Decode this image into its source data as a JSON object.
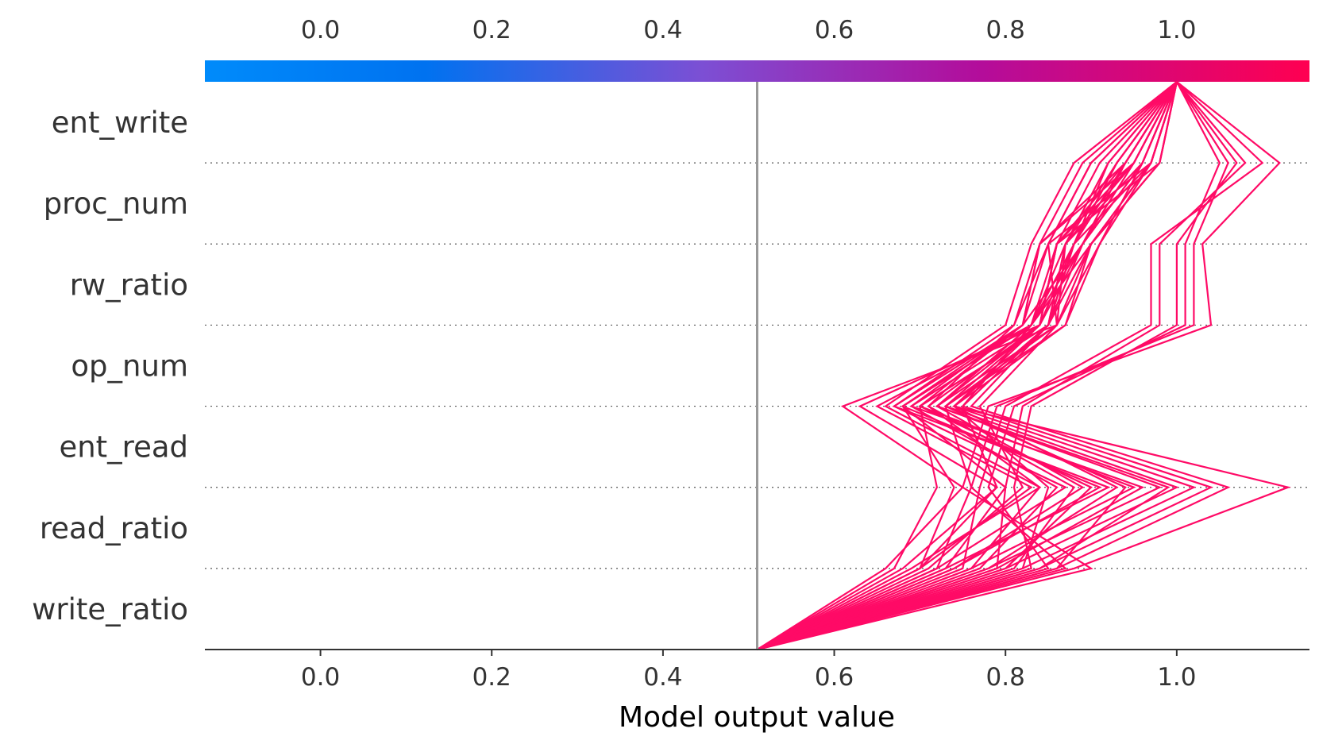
{
  "chart_data": {
    "type": "line",
    "plot_kind": "decision plot",
    "xlabel": "Model output value",
    "xlim": [
      -0.135,
      1.155
    ],
    "x_ticks": [
      "0.0",
      "0.2",
      "0.4",
      "0.6",
      "0.8",
      "1.0"
    ],
    "x_tick_values": [
      0.0,
      0.2,
      0.4,
      0.6,
      0.8,
      1.0
    ],
    "top_axis_ticks": [
      "0.0",
      "0.2",
      "0.4",
      "0.6",
      "0.8",
      "1.0"
    ],
    "features": [
      "ent_write",
      "proc_num",
      "rw_ratio",
      "op_num",
      "ent_read",
      "read_ratio",
      "write_ratio"
    ],
    "base_value": 0.51,
    "grid": "dotted horizontal lines between features",
    "colorbar": {
      "position": "top",
      "colors": [
        "#008bfb",
        "#0072f0",
        "#7c4fd4",
        "#b30d9b",
        "#ff0051"
      ]
    },
    "line_color": "#ff0a66",
    "base_line_color": "#999999",
    "series_note": "Each series lists cumulative output at levels: bottom, after write_ratio, after read_ratio, after ent_read, after op_num, after rw_ratio, after proc_num, top (after ent_write).",
    "series": [
      {
        "values": [
          0.51,
          0.66,
          0.75,
          0.61,
          0.86,
          0.85,
          0.97,
          1.0
        ]
      },
      {
        "values": [
          0.51,
          0.68,
          0.79,
          0.63,
          0.84,
          0.86,
          0.98,
          1.0
        ]
      },
      {
        "values": [
          0.51,
          0.7,
          0.83,
          0.65,
          0.83,
          0.88,
          0.94,
          1.0
        ]
      },
      {
        "values": [
          0.51,
          0.72,
          0.87,
          0.67,
          0.82,
          0.89,
          0.96,
          1.0
        ]
      },
      {
        "values": [
          0.51,
          0.74,
          0.91,
          0.68,
          0.82,
          0.84,
          0.95,
          1.0
        ]
      },
      {
        "values": [
          0.51,
          0.76,
          0.95,
          0.7,
          0.85,
          0.87,
          0.93,
          1.0
        ]
      },
      {
        "values": [
          0.51,
          0.78,
          0.98,
          0.72,
          0.86,
          0.9,
          0.97,
          1.0
        ]
      },
      {
        "values": [
          0.51,
          0.8,
          1.0,
          0.73,
          0.87,
          0.91,
          0.96,
          1.0
        ]
      },
      {
        "values": [
          0.51,
          0.82,
          1.02,
          0.74,
          0.84,
          0.88,
          0.92,
          1.0
        ]
      },
      {
        "values": [
          0.51,
          0.84,
          1.04,
          0.75,
          0.83,
          0.86,
          0.94,
          1.0
        ]
      },
      {
        "values": [
          0.51,
          0.86,
          1.06,
          0.76,
          0.85,
          0.88,
          0.97,
          1.0
        ]
      },
      {
        "values": [
          0.51,
          0.88,
          1.13,
          0.74,
          0.87,
          0.9,
          0.98,
          1.0
        ]
      },
      {
        "values": [
          0.51,
          0.8,
          0.9,
          0.7,
          0.85,
          0.87,
          0.95,
          1.0
        ]
      },
      {
        "values": [
          0.51,
          0.77,
          0.86,
          0.69,
          0.84,
          0.88,
          0.93,
          1.0
        ]
      },
      {
        "values": [
          0.51,
          0.73,
          0.8,
          0.68,
          0.83,
          0.9,
          0.97,
          1.0
        ]
      },
      {
        "values": [
          0.51,
          0.72,
          0.76,
          0.73,
          0.84,
          0.89,
          0.96,
          1.0
        ]
      },
      {
        "values": [
          0.51,
          0.7,
          0.79,
          0.75,
          0.85,
          0.9,
          0.98,
          1.0
        ]
      },
      {
        "values": [
          0.51,
          0.71,
          0.82,
          0.77,
          0.86,
          0.91,
          0.97,
          1.0
        ]
      },
      {
        "values": [
          0.51,
          0.69,
          0.84,
          0.71,
          0.84,
          0.86,
          0.95,
          1.0
        ]
      },
      {
        "values": [
          0.51,
          0.67,
          0.72,
          0.7,
          0.82,
          0.84,
          0.94,
          1.0
        ]
      },
      {
        "values": [
          0.51,
          0.74,
          0.89,
          0.72,
          0.83,
          0.87,
          0.96,
          1.0
        ]
      },
      {
        "values": [
          0.51,
          0.78,
          0.93,
          0.74,
          0.85,
          0.89,
          0.95,
          1.0
        ]
      },
      {
        "values": [
          0.51,
          0.75,
          0.77,
          0.8,
          0.97,
          0.97,
          1.1,
          1.0
        ]
      },
      {
        "values": [
          0.51,
          0.79,
          0.8,
          0.82,
          0.98,
          0.98,
          1.08,
          1.0
        ]
      },
      {
        "values": [
          0.51,
          0.83,
          0.81,
          0.83,
          1.0,
          1.0,
          1.07,
          1.0
        ]
      },
      {
        "values": [
          0.51,
          0.85,
          0.78,
          0.81,
          1.01,
          1.01,
          1.05,
          1.0
        ]
      },
      {
        "values": [
          0.51,
          0.87,
          0.76,
          0.79,
          1.02,
          1.02,
          1.06,
          1.0
        ]
      },
      {
        "values": [
          0.51,
          0.9,
          0.75,
          0.78,
          1.04,
          1.03,
          1.12,
          1.0
        ]
      },
      {
        "values": [
          0.51,
          0.81,
          0.88,
          0.71,
          0.81,
          0.85,
          0.9,
          1.0
        ]
      },
      {
        "values": [
          0.51,
          0.76,
          0.84,
          0.66,
          0.8,
          0.83,
          0.88,
          1.0
        ]
      },
      {
        "values": [
          0.51,
          0.73,
          0.92,
          0.67,
          0.81,
          0.84,
          0.89,
          1.0
        ]
      },
      {
        "values": [
          0.51,
          0.79,
          0.96,
          0.69,
          0.82,
          0.85,
          0.9,
          1.0
        ]
      },
      {
        "values": [
          0.51,
          0.84,
          0.99,
          0.72,
          0.84,
          0.86,
          0.91,
          1.0
        ]
      },
      {
        "values": [
          0.51,
          0.86,
          0.94,
          0.73,
          0.86,
          0.87,
          0.92,
          1.0
        ]
      },
      {
        "values": [
          0.51,
          0.82,
          0.85,
          0.74,
          0.85,
          0.88,
          0.93,
          1.0
        ]
      },
      {
        "values": [
          0.51,
          0.7,
          0.74,
          0.68,
          0.83,
          0.89,
          0.94,
          1.0
        ]
      }
    ]
  }
}
